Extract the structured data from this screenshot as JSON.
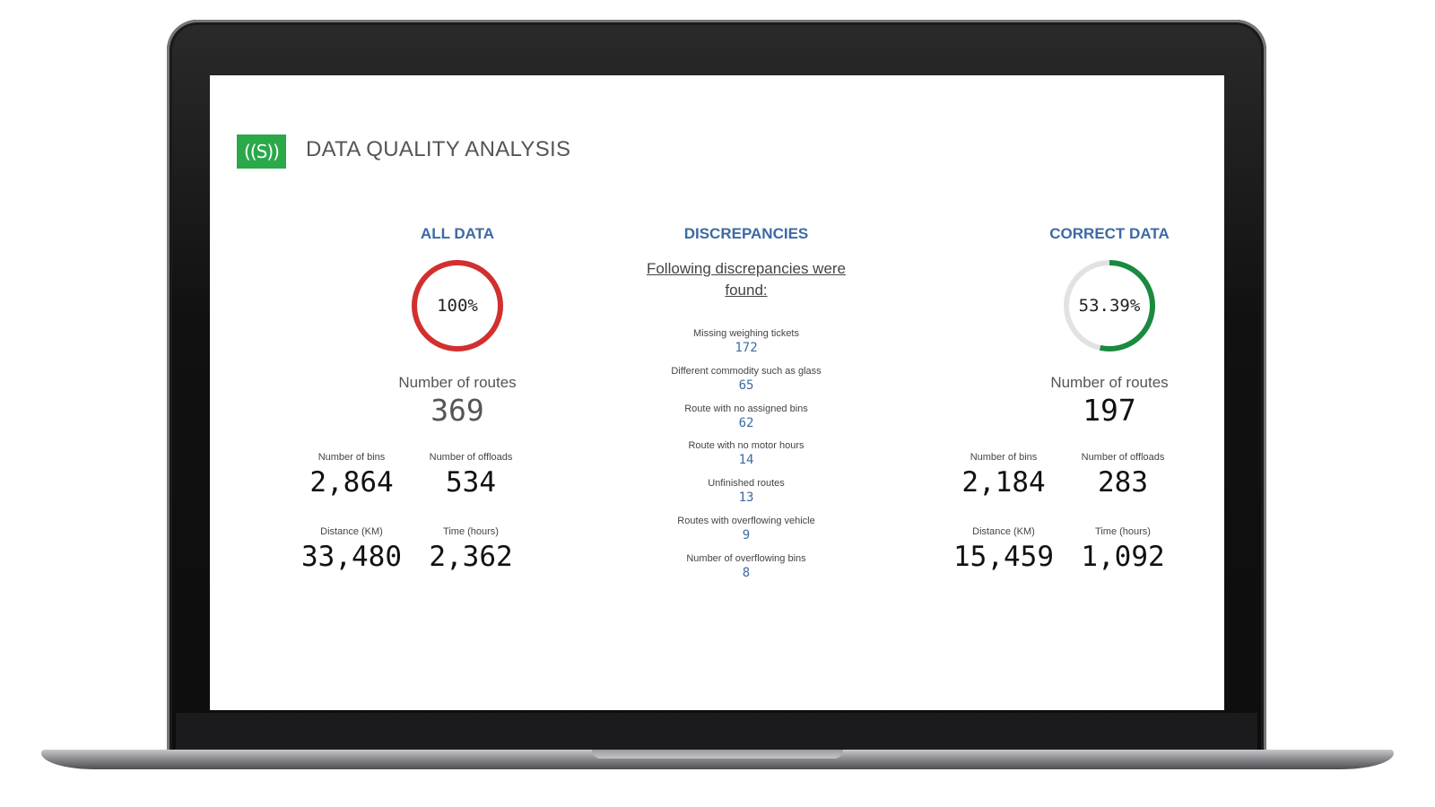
{
  "header": {
    "logo_text": "((S))",
    "title": "DATA QUALITY ANALYSIS"
  },
  "colors": {
    "accent": "#3c6aa3",
    "logo_green": "#2aa84a",
    "gauge_red": "#d32f2f",
    "gauge_green": "#1a8a3f",
    "gauge_track": "#e2e2e2"
  },
  "all_data": {
    "heading": "ALL DATA",
    "gauge": {
      "label": "100%",
      "fraction": 1.0
    },
    "routes_label": "Number of routes",
    "routes_value": "369",
    "stats": [
      {
        "label": "Number of bins",
        "value": "2,864"
      },
      {
        "label": "Number of offloads",
        "value": "534"
      },
      {
        "label": "Distance (KM)",
        "value": "33,480"
      },
      {
        "label": "Time (hours)",
        "value": "2,362"
      }
    ]
  },
  "discrepancies": {
    "heading": "DISCREPANCIES",
    "intro": "Following discrepancies were found:",
    "items": [
      {
        "label": "Missing weighing tickets",
        "value": "172"
      },
      {
        "label": "Different commodity such as glass",
        "value": "65"
      },
      {
        "label": "Route with no assigned bins",
        "value": "62"
      },
      {
        "label": "Route with no motor hours",
        "value": "14"
      },
      {
        "label": "Unfinished routes",
        "value": "13"
      },
      {
        "label": "Routes with overflowing vehicle",
        "value": "9"
      },
      {
        "label": "Number of overflowing bins",
        "value": "8"
      }
    ]
  },
  "correct_data": {
    "heading": "CORRECT DATA",
    "gauge": {
      "label": "53.39%",
      "fraction": 0.5339
    },
    "routes_label": "Number of routes",
    "routes_value": "197",
    "stats": [
      {
        "label": "Number of bins",
        "value": "2,184"
      },
      {
        "label": "Number of offloads",
        "value": "283"
      },
      {
        "label": "Distance (KM)",
        "value": "15,459"
      },
      {
        "label": "Time (hours)",
        "value": "1,092"
      }
    ]
  }
}
